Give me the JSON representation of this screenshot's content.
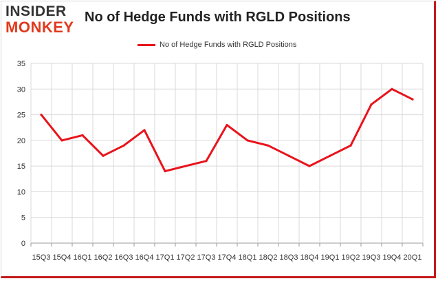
{
  "logo": {
    "line1": "INSIDER",
    "line2": "MONKEY"
  },
  "header": {
    "title": "No of Hedge Funds with RGLD Positions"
  },
  "colors": {
    "line": "#e8141c",
    "grid": "#d9d9d9",
    "axis": "#999999",
    "logo_red": "#e03a1e",
    "frame_red": "#c41a1a"
  },
  "chart_data": {
    "type": "line",
    "title": "No of Hedge Funds with RGLD Positions",
    "xlabel": "",
    "ylabel": "",
    "ylim": [
      0,
      35
    ],
    "yticks": [
      0,
      5,
      10,
      15,
      20,
      25,
      30,
      35
    ],
    "grid": true,
    "legend": "top-center",
    "categories": [
      "15Q3",
      "15Q4",
      "16Q1",
      "16Q2",
      "16Q3",
      "16Q4",
      "17Q1",
      "17Q2",
      "17Q3",
      "17Q4",
      "18Q1",
      "18Q2",
      "18Q3",
      "18Q4",
      "19Q1",
      "19Q2",
      "19Q3",
      "19Q4",
      "20Q1"
    ],
    "series": [
      {
        "name": "No of Hedge Funds with RGLD Positions",
        "values": [
          25,
          20,
          21,
          17,
          19,
          22,
          14,
          15,
          16,
          23,
          20,
          19,
          17,
          15,
          17,
          19,
          27,
          30,
          28
        ]
      }
    ]
  }
}
